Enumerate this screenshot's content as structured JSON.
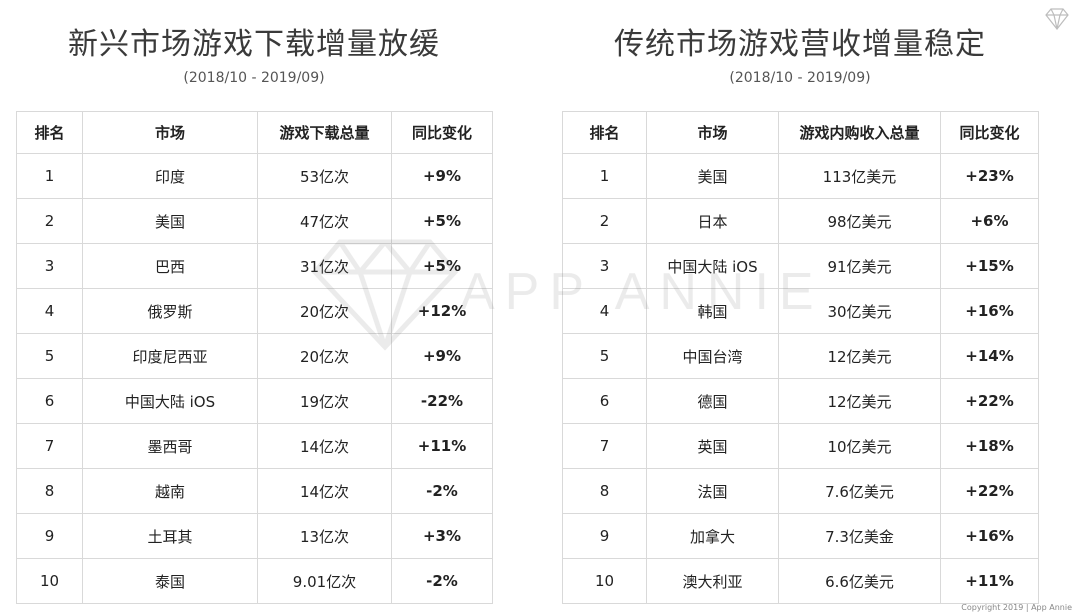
{
  "left": {
    "title": "新兴市场游戏下载增量放缓",
    "subtitle": "(2018/10 - 2019/09)",
    "headers": [
      "排名",
      "市场",
      "游戏下载总量",
      "同比变化"
    ],
    "rows": [
      {
        "rank": "1",
        "market": "印度",
        "value": "53亿次",
        "change": "+9%",
        "trend": "pos"
      },
      {
        "rank": "2",
        "market": "美国",
        "value": "47亿次",
        "change": "+5%",
        "trend": "pos"
      },
      {
        "rank": "3",
        "market": "巴西",
        "value": "31亿次",
        "change": "+5%",
        "trend": "pos"
      },
      {
        "rank": "4",
        "market": "俄罗斯",
        "value": "20亿次",
        "change": "+12%",
        "trend": "pos"
      },
      {
        "rank": "5",
        "market": "印度尼西亚",
        "value": "20亿次",
        "change": "+9%",
        "trend": "pos"
      },
      {
        "rank": "6",
        "market": "中国大陆 iOS",
        "value": "19亿次",
        "change": "-22%",
        "trend": "neg"
      },
      {
        "rank": "7",
        "market": "墨西哥",
        "value": "14亿次",
        "change": "+11%",
        "trend": "pos"
      },
      {
        "rank": "8",
        "market": "越南",
        "value": "14亿次",
        "change": "-2%",
        "trend": "neg"
      },
      {
        "rank": "9",
        "market": "土耳其",
        "value": "13亿次",
        "change": "+3%",
        "trend": "pos"
      },
      {
        "rank": "10",
        "market": "泰国",
        "value": "9.01亿次",
        "change": "-2%",
        "trend": "neg"
      }
    ]
  },
  "right": {
    "title": "传统市场游戏营收增量稳定",
    "subtitle": "(2018/10 - 2019/09)",
    "headers": [
      "排名",
      "市场",
      "游戏内购收入总量",
      "同比变化"
    ],
    "rows": [
      {
        "rank": "1",
        "market": "美国",
        "value": "113亿美元",
        "change": "+23%",
        "trend": "pos"
      },
      {
        "rank": "2",
        "market": "日本",
        "value": "98亿美元",
        "change": "+6%",
        "trend": "pos"
      },
      {
        "rank": "3",
        "market": "中国大陆 iOS",
        "value": "91亿美元",
        "change": "+15%",
        "trend": "pos"
      },
      {
        "rank": "4",
        "market": "韩国",
        "value": "30亿美元",
        "change": "+16%",
        "trend": "pos"
      },
      {
        "rank": "5",
        "market": "中国台湾",
        "value": "12亿美元",
        "change": "+14%",
        "trend": "pos"
      },
      {
        "rank": "6",
        "market": "德国",
        "value": "12亿美元",
        "change": "+22%",
        "trend": "pos"
      },
      {
        "rank": "7",
        "market": "英国",
        "value": "10亿美元",
        "change": "+18%",
        "trend": "pos"
      },
      {
        "rank": "8",
        "market": "法国",
        "value": "7.6亿美元",
        "change": "+22%",
        "trend": "pos"
      },
      {
        "rank": "9",
        "market": "加拿大",
        "value": "7.3亿美金",
        "change": "+16%",
        "trend": "pos"
      },
      {
        "rank": "10",
        "market": "澳大利亚",
        "value": "6.6亿美元",
        "change": "+11%",
        "trend": "pos"
      }
    ]
  },
  "watermark": {
    "text": "APP ANNIE",
    "icon": "diamond-logo-icon"
  },
  "corner_logo": {
    "icon": "diamond-logo-icon"
  },
  "footer": "Copyright 2019 | App Annie",
  "colors": {
    "positive": "#2f9a3a",
    "negative": "#d42a22",
    "border": "#d9d9d9",
    "title": "#3a3a3a"
  }
}
